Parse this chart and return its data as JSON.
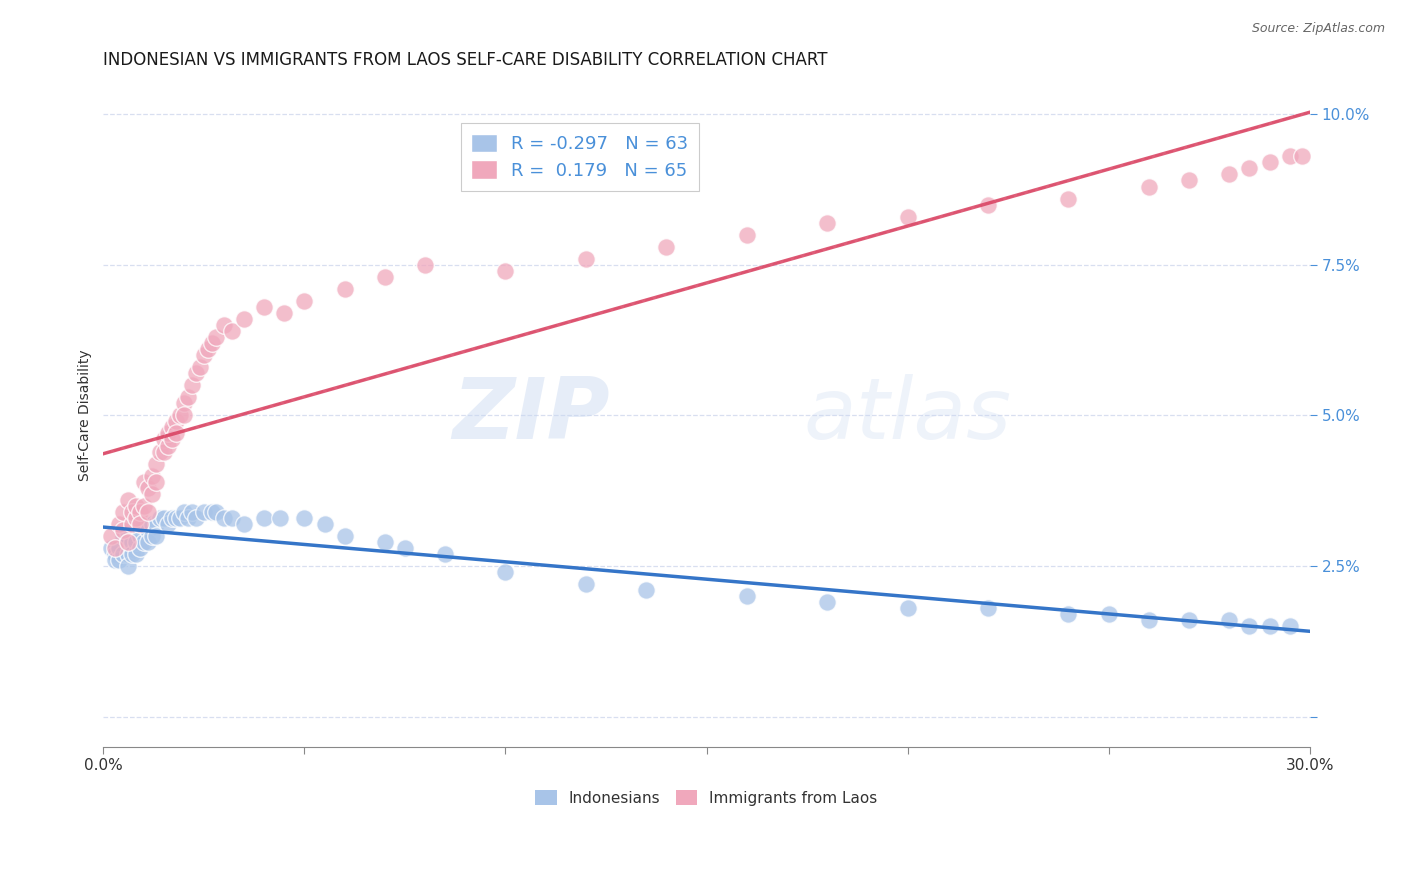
{
  "title": "INDONESIAN VS IMMIGRANTS FROM LAOS SELF-CARE DISABILITY CORRELATION CHART",
  "source": "Source: ZipAtlas.com",
  "ylabel": "Self-Care Disability",
  "xlim": [
    0.0,
    0.3
  ],
  "ylim": [
    -0.005,
    0.105
  ],
  "xticks": [
    0.0,
    0.05,
    0.1,
    0.15,
    0.2,
    0.25,
    0.3
  ],
  "xtick_labels": [
    "0.0%",
    "",
    "",
    "",
    "",
    "",
    "30.0%"
  ],
  "yticks": [
    0.0,
    0.025,
    0.05,
    0.075,
    0.1
  ],
  "ytick_labels": [
    "",
    "2.5%",
    "5.0%",
    "7.5%",
    "10.0%"
  ],
  "blue_color": "#a8c4e8",
  "pink_color": "#f0a8bc",
  "blue_line_color": "#3575c8",
  "pink_line_color": "#d94060",
  "pink_dash_color": "#e8a0b0",
  "grid_color": "#d8dff0",
  "watermark_zip": "ZIP",
  "watermark_atlas": "atlas",
  "legend_R_blue": "R = -0.297",
  "legend_N_blue": "N = 63",
  "legend_R_pink": "R =  0.179",
  "legend_N_pink": "N = 65",
  "blue_scatter_x": [
    0.002,
    0.003,
    0.004,
    0.004,
    0.005,
    0.005,
    0.006,
    0.006,
    0.006,
    0.007,
    0.007,
    0.007,
    0.008,
    0.008,
    0.009,
    0.009,
    0.01,
    0.01,
    0.01,
    0.011,
    0.011,
    0.012,
    0.012,
    0.013,
    0.013,
    0.014,
    0.014,
    0.015,
    0.015,
    0.016,
    0.017,
    0.017,
    0.018,
    0.019,
    0.02,
    0.021,
    0.022,
    0.023,
    0.024,
    0.025,
    0.026,
    0.028,
    0.03,
    0.031,
    0.033,
    0.035,
    0.037,
    0.04,
    0.043,
    0.045,
    0.05,
    0.055,
    0.06,
    0.065,
    0.07,
    0.08,
    0.09,
    0.1,
    0.12,
    0.14,
    0.16,
    0.22,
    0.27
  ],
  "blue_scatter_y": [
    0.028,
    0.026,
    0.027,
    0.025,
    0.029,
    0.027,
    0.028,
    0.026,
    0.025,
    0.028,
    0.027,
    0.025,
    0.028,
    0.026,
    0.029,
    0.027,
    0.031,
    0.029,
    0.027,
    0.029,
    0.027,
    0.031,
    0.028,
    0.03,
    0.028,
    0.031,
    0.029,
    0.032,
    0.029,
    0.031,
    0.032,
    0.03,
    0.031,
    0.032,
    0.033,
    0.032,
    0.034,
    0.033,
    0.032,
    0.034,
    0.033,
    0.034,
    0.033,
    0.032,
    0.033,
    0.031,
    0.031,
    0.033,
    0.033,
    0.032,
    0.034,
    0.032,
    0.03,
    0.028,
    0.028,
    0.025,
    0.022,
    0.02,
    0.018,
    0.017,
    0.016,
    0.016,
    0.015
  ],
  "pink_scatter_x": [
    0.002,
    0.003,
    0.004,
    0.005,
    0.005,
    0.006,
    0.006,
    0.007,
    0.007,
    0.008,
    0.008,
    0.009,
    0.009,
    0.01,
    0.01,
    0.011,
    0.011,
    0.012,
    0.012,
    0.013,
    0.013,
    0.014,
    0.015,
    0.016,
    0.017,
    0.018,
    0.019,
    0.02,
    0.021,
    0.022,
    0.023,
    0.024,
    0.025,
    0.026,
    0.028,
    0.03,
    0.032,
    0.034,
    0.036,
    0.038,
    0.04,
    0.042,
    0.045,
    0.048,
    0.05,
    0.055,
    0.06,
    0.065,
    0.07,
    0.08,
    0.09,
    0.1,
    0.12,
    0.14,
    0.16,
    0.18,
    0.2,
    0.22,
    0.24,
    0.26,
    0.28,
    0.29,
    0.29,
    0.295,
    0.298
  ],
  "pink_scatter_y": [
    0.03,
    0.029,
    0.032,
    0.033,
    0.031,
    0.028,
    0.035,
    0.031,
    0.033,
    0.032,
    0.034,
    0.033,
    0.031,
    0.038,
    0.034,
    0.036,
    0.033,
    0.038,
    0.036,
    0.04,
    0.038,
    0.042,
    0.044,
    0.043,
    0.045,
    0.046,
    0.048,
    0.05,
    0.051,
    0.052,
    0.053,
    0.054,
    0.056,
    0.057,
    0.06,
    0.062,
    0.063,
    0.064,
    0.065,
    0.066,
    0.068,
    0.066,
    0.065,
    0.068,
    0.067,
    0.069,
    0.07,
    0.071,
    0.073,
    0.075,
    0.073,
    0.074,
    0.076,
    0.078,
    0.079,
    0.08,
    0.082,
    0.083,
    0.084,
    0.087,
    0.088,
    0.089,
    0.09,
    0.092,
    0.093
  ],
  "bg_color": "#ffffff",
  "title_fontsize": 12,
  "axis_label_fontsize": 10,
  "tick_fontsize": 11,
  "legend_fontsize": 13
}
